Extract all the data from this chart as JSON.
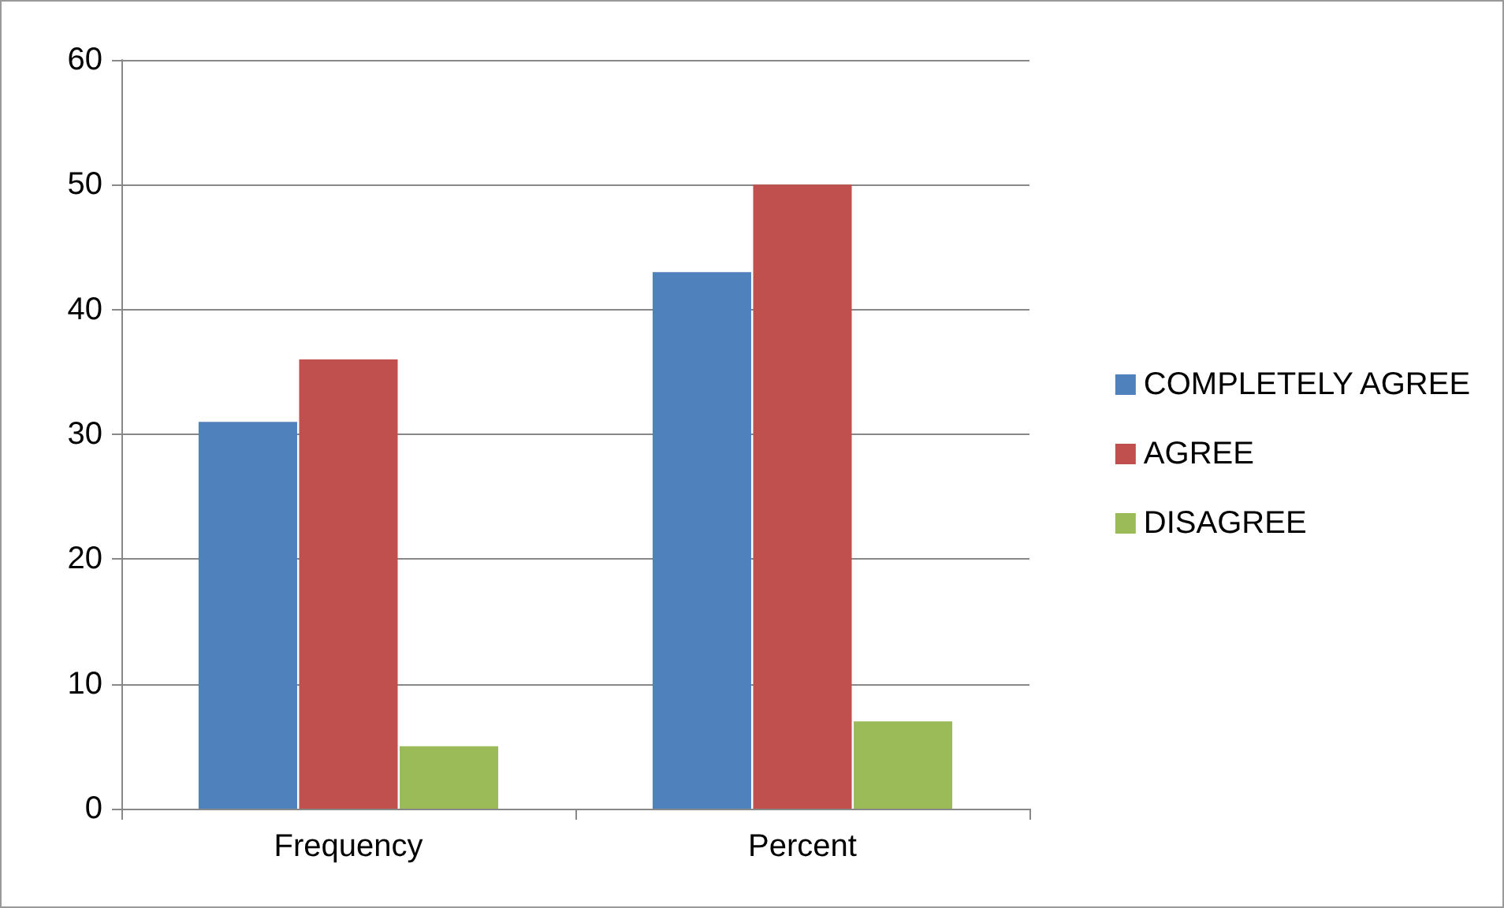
{
  "chart_data": {
    "type": "bar",
    "categories": [
      "Frequency",
      "Percent"
    ],
    "series": [
      {
        "name": "COMPLETELY AGREE",
        "color": "#4f81bd",
        "values": [
          31,
          43
        ]
      },
      {
        "name": "AGREE",
        "color": "#c0504d",
        "values": [
          36,
          50
        ]
      },
      {
        "name": "DISAGREE",
        "color": "#9bbb59",
        "values": [
          5,
          7
        ]
      }
    ],
    "ylim": [
      0,
      60
    ],
    "yticks": [
      0,
      10,
      20,
      30,
      40,
      50,
      60
    ],
    "grid": "y",
    "legend": "right"
  }
}
